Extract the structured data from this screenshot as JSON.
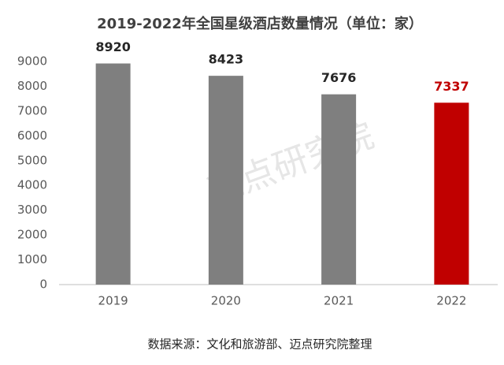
{
  "chart_data": {
    "type": "bar",
    "title": "2019-2022年全国星级酒店数量情况（单位：家）",
    "categories": [
      "2019",
      "2020",
      "2021",
      "2022"
    ],
    "values": [
      8920,
      8423,
      7676,
      7337
    ],
    "colors": [
      "#7f7f7f",
      "#7f7f7f",
      "#7f7f7f",
      "#c00000"
    ],
    "label_colors": [
      "#262626",
      "#262626",
      "#262626",
      "#c00000"
    ],
    "ylim": [
      0,
      9000
    ],
    "yticks": [
      0,
      1000,
      2000,
      3000,
      4000,
      5000,
      6000,
      7000,
      8000,
      9000
    ],
    "grid": false,
    "source": "数据来源：文化和旅游部、迈点研究院整理",
    "watermark": "迈点研究院"
  }
}
